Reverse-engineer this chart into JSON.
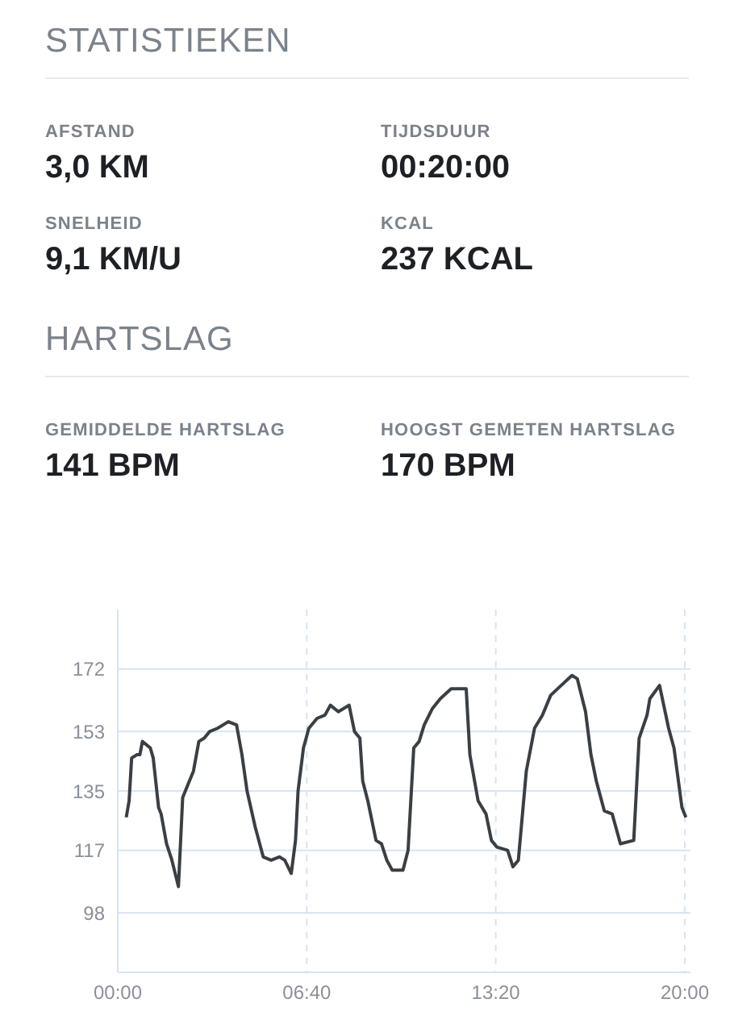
{
  "chart_data": {
    "type": "line",
    "title": "STATISTIEKEN",
    "subtitle": "HARTSLAG",
    "annotations": [
      "AFSTAND",
      "3,0 KM",
      "TIJDSDUUR",
      "00:20:00",
      "SNELHEID",
      "9,1 KM/U",
      "KCAL",
      "237 KCAL",
      "GEMIDDELDE HARTSLAG",
      "141 BPM",
      "HOOGST GEMETEN HARTSLAG",
      "170 BPM"
    ],
    "x": [
      0.3,
      0.4,
      0.49,
      0.68,
      0.78,
      0.87,
      1.15,
      1.25,
      1.44,
      1.53,
      1.72,
      1.91,
      2.14,
      2.29,
      2.48,
      2.67,
      2.86,
      3.05,
      3.24,
      3.52,
      3.9,
      4.19,
      4.38,
      4.56,
      4.85,
      5.13,
      5.41,
      5.7,
      5.89,
      6.12,
      6.27,
      6.36,
      6.55,
      6.74,
      7.03,
      7.31,
      7.5,
      7.78,
      8.16,
      8.35,
      8.54,
      8.64,
      8.82,
      9.11,
      9.3,
      9.49,
      9.68,
      10.06,
      10.24,
      10.44,
      10.63,
      10.81,
      11.1,
      11.38,
      11.76,
      12.29,
      12.42,
      12.71,
      12.99,
      13.18,
      13.37,
      13.75,
      13.94,
      14.13,
      14.41,
      14.7,
      14.98,
      15.27,
      15.64,
      16.02,
      16.21,
      16.5,
      16.69,
      16.88,
      17.16,
      17.44,
      17.73,
      18.2,
      18.39,
      18.67,
      18.77,
      19.11,
      19.43,
      19.62,
      19.9,
      20.04
    ],
    "series": [
      {
        "color": "#3a3f44",
        "values": [
          127,
          132,
          145,
          146,
          146,
          150,
          148,
          145,
          130,
          128,
          119,
          114,
          106,
          133,
          137,
          141,
          150,
          151,
          153,
          154,
          156,
          155,
          146,
          135,
          124,
          115,
          114,
          115,
          114,
          110,
          120,
          135,
          148,
          154,
          157,
          158,
          161,
          159,
          161,
          153,
          151,
          138,
          132,
          120,
          119,
          114,
          111,
          111,
          117,
          148,
          150,
          155,
          160,
          163,
          166,
          166,
          146,
          132,
          128,
          120,
          118,
          117,
          112,
          114,
          141,
          154,
          158,
          164,
          167,
          170,
          169,
          159,
          146,
          138,
          129,
          128,
          119,
          120,
          151,
          158,
          163,
          167,
          154,
          148,
          130,
          127
        ]
      }
    ],
    "xlim": [
      0,
      20.2
    ],
    "xticks": [
      {
        "value": 0,
        "label": "00:00"
      },
      {
        "value": 6.667,
        "label": "06:40"
      },
      {
        "value": 13.333,
        "label": "13:20"
      },
      {
        "value": 20,
        "label": "20:00"
      }
    ],
    "ylim": [
      80,
      190
    ],
    "yticks": [
      98,
      117,
      135,
      153,
      172
    ],
    "grid": true,
    "marker": "none",
    "line_style": "solid"
  }
}
